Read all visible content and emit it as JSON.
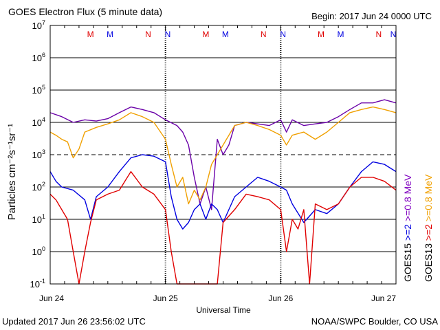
{
  "chart_data": {
    "type": "line",
    "title": "GOES Electron Flux (5 minute data)",
    "begin_label": "Begin: 2017 Jun 24 0000 UTC",
    "xlabel": "Universal Time",
    "ylabel": "Particles cm⁻²s⁻¹sr⁻¹",
    "x_ticks": [
      "Jun 24",
      "Jun 25",
      "Jun 26",
      "Jun 27"
    ],
    "x_range_days": [
      0,
      3
    ],
    "y_scale": "log",
    "ylim": [
      0.1,
      10000000
    ],
    "y_ticks": [
      {
        "base": "10",
        "exp": "-1"
      },
      {
        "base": "10",
        "exp": "0"
      },
      {
        "base": "10",
        "exp": "1"
      },
      {
        "base": "10",
        "exp": "2"
      },
      {
        "base": "10",
        "exp": "3"
      },
      {
        "base": "10",
        "exp": "4"
      },
      {
        "base": "10",
        "exp": "5"
      },
      {
        "base": "10",
        "exp": "6"
      },
      {
        "base": "10",
        "exp": "7"
      }
    ],
    "grid": "horizontal at each decade, dashed at 10^3",
    "markers": [
      {
        "label": "M",
        "x": 0.35,
        "color": "#e00000"
      },
      {
        "label": "M",
        "x": 0.52,
        "color": "#0000e0"
      },
      {
        "label": "N",
        "x": 0.85,
        "color": "#e00000"
      },
      {
        "label": "N",
        "x": 1.02,
        "color": "#0000e0"
      },
      {
        "label": "M",
        "x": 1.35,
        "color": "#e00000"
      },
      {
        "label": "M",
        "x": 1.52,
        "color": "#0000e0"
      },
      {
        "label": "N",
        "x": 1.85,
        "color": "#e00000"
      },
      {
        "label": "N",
        "x": 2.02,
        "color": "#0000e0"
      },
      {
        "label": "M",
        "x": 2.35,
        "color": "#e00000"
      },
      {
        "label": "M",
        "x": 2.52,
        "color": "#0000e0"
      },
      {
        "label": "N",
        "x": 2.85,
        "color": "#e00000"
      },
      {
        "label": "N",
        "x": 3.02,
        "color": "#0000e0"
      }
    ],
    "legend": [
      {
        "sat": "GOES15",
        "text": ">=2",
        "text2": ">=0.8",
        "unit": "MeV",
        "color1": "#0000e0",
        "color2": "#8000c0"
      },
      {
        "sat": "GOES13",
        "text": ">=2",
        "text2": ">=0.8",
        "unit": "MeV",
        "color1": "#e00000",
        "color2": "#f0a000"
      }
    ],
    "series": [
      {
        "id": "g15_08",
        "color": "#6a00a8",
        "x": [
          0,
          0.1,
          0.2,
          0.3,
          0.4,
          0.5,
          0.6,
          0.7,
          0.8,
          0.9,
          1.0,
          1.1,
          1.15,
          1.2,
          1.25,
          1.3,
          1.35,
          1.4,
          1.45,
          1.5,
          1.55,
          1.6,
          1.7,
          1.8,
          1.9,
          2.0,
          2.05,
          2.1,
          2.2,
          2.3,
          2.4,
          2.5,
          2.6,
          2.7,
          2.8,
          2.9,
          3.0
        ],
        "y": [
          20000,
          15000,
          10000,
          12000,
          11000,
          13000,
          20000,
          30000,
          25000,
          20000,
          12000,
          8000,
          5000,
          2000,
          200,
          30,
          100,
          20,
          3000,
          1000,
          2000,
          8000,
          10000,
          9000,
          8000,
          12000,
          5000,
          12000,
          8000,
          9000,
          10000,
          15000,
          25000,
          40000,
          40000,
          50000,
          40000
        ]
      },
      {
        "id": "g13_08",
        "color": "#f0a000",
        "x": [
          0,
          0.05,
          0.1,
          0.15,
          0.2,
          0.25,
          0.3,
          0.4,
          0.5,
          0.6,
          0.7,
          0.8,
          0.9,
          1.0,
          1.05,
          1.1,
          1.15,
          1.2,
          1.25,
          1.3,
          1.35,
          1.4,
          1.5,
          1.6,
          1.7,
          1.8,
          1.9,
          2.0,
          2.05,
          2.1,
          2.2,
          2.3,
          2.4,
          2.5,
          2.6,
          2.7,
          2.8,
          2.9,
          3.0
        ],
        "y": [
          5000,
          4000,
          3000,
          2500,
          800,
          1500,
          5000,
          7000,
          9000,
          12000,
          20000,
          15000,
          10000,
          3000,
          500,
          100,
          200,
          30,
          80,
          40,
          100,
          500,
          2000,
          8000,
          10000,
          8000,
          6000,
          4000,
          2000,
          4000,
          5000,
          3000,
          5000,
          10000,
          20000,
          25000,
          30000,
          25000,
          20000
        ]
      },
      {
        "id": "g15_2",
        "color": "#0000e0",
        "x": [
          0,
          0.05,
          0.1,
          0.2,
          0.3,
          0.35,
          0.4,
          0.5,
          0.6,
          0.7,
          0.8,
          0.9,
          1.0,
          1.05,
          1.1,
          1.15,
          1.2,
          1.25,
          1.3,
          1.35,
          1.4,
          1.45,
          1.5,
          1.6,
          1.7,
          1.8,
          1.9,
          2.0,
          2.05,
          2.1,
          2.2,
          2.3,
          2.4,
          2.5,
          2.6,
          2.7,
          2.8,
          2.9,
          3.0
        ],
        "y": [
          300,
          150,
          100,
          80,
          40,
          10,
          50,
          100,
          300,
          800,
          1000,
          900,
          600,
          50,
          10,
          5,
          8,
          20,
          30,
          10,
          30,
          20,
          8,
          50,
          100,
          200,
          150,
          100,
          80,
          30,
          8,
          20,
          15,
          30,
          100,
          300,
          600,
          500,
          300
        ]
      },
      {
        "id": "g13_2",
        "color": "#e00000",
        "x": [
          0,
          0.05,
          0.1,
          0.15,
          0.2,
          0.25,
          0.3,
          0.35,
          0.4,
          0.5,
          0.6,
          0.7,
          0.8,
          0.9,
          1.0,
          1.05,
          1.1,
          1.15,
          1.2,
          1.25,
          1.3,
          1.35,
          1.4,
          1.45,
          1.5,
          1.6,
          1.7,
          1.8,
          1.9,
          2.0,
          2.05,
          2.1,
          2.15,
          2.2,
          2.25,
          2.3,
          2.4,
          2.5,
          2.6,
          2.7,
          2.8,
          2.9,
          3.0
        ],
        "y": [
          60,
          40,
          20,
          10,
          1,
          0.1,
          1,
          8,
          40,
          60,
          80,
          300,
          100,
          60,
          20,
          1,
          0.1,
          0.1,
          0.1,
          0.1,
          0.1,
          0.1,
          0.1,
          0.1,
          8,
          20,
          60,
          50,
          40,
          20,
          1,
          10,
          5,
          20,
          0.1,
          30,
          20,
          30,
          100,
          200,
          200,
          150,
          80
        ]
      }
    ]
  },
  "footer": {
    "updated": "Updated 2017 Jun 26 23:56:02 UTC",
    "source": "NOAA/SWPC Boulder, CO USA"
  }
}
